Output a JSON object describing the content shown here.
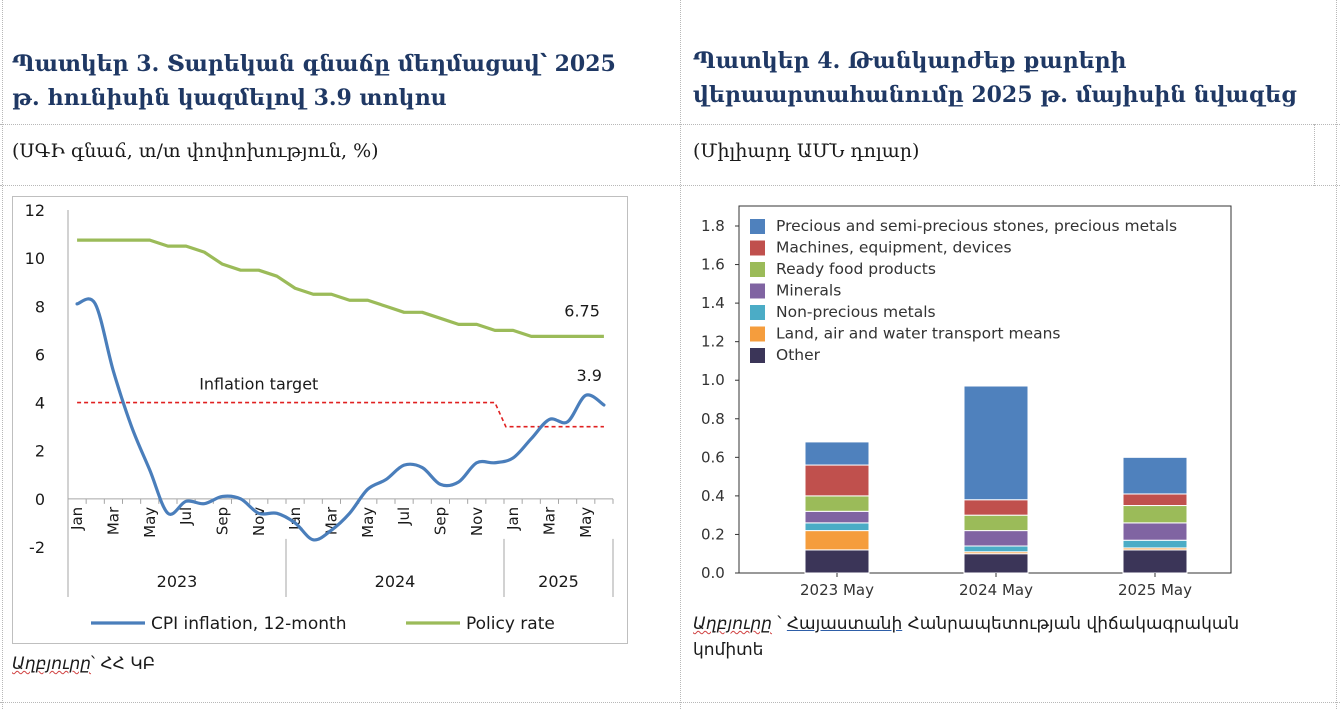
{
  "left_panel": {
    "title_line1": "Պատկեր 3. Տարեկան գնաճը մեղմացավ՝ 2025",
    "title_line2": "թ. հունիսին կազմելով 3.9 տոկոս",
    "subtitle": "(ՍԳԻ գնաճ, տ/տ փոփոխություն, %)",
    "source_label": "Աղբյուրը",
    "source_text": "՝ ՀՀ ԿԲ"
  },
  "right_panel": {
    "title_line1": "Պատկեր 4. Թանկարժեք քարերի",
    "title_line2": "վերաարտահանումը 2025 թ. մայիսին նվազեց",
    "subtitle": "(Միլիարդ ԱՄՆ դոլար)",
    "source_label": "Աղբյուրը",
    "source_sep": " ՝ ",
    "source_link": "Հայաստանի",
    "source_text_rest": " Հանրապետության վիճակագրական",
    "source_text_line2": "կոմիտե"
  },
  "chart_data": [
    {
      "type": "line",
      "ylim": [
        -2,
        12
      ],
      "yticks": [
        "12",
        "10",
        "8",
        "6",
        "4",
        "2",
        "0",
        "-2"
      ],
      "ytick_values": [
        12,
        10,
        8,
        6,
        4,
        2,
        0,
        -2
      ],
      "month_labels": [
        "Jan",
        "Mar",
        "May",
        "Jul",
        "Sep",
        "Nov",
        "Jan",
        "Mar",
        "May",
        "Jul",
        "Sep",
        "Nov",
        "Jan",
        "Mar",
        "May"
      ],
      "month_label_index": [
        0,
        2,
        4,
        6,
        8,
        10,
        12,
        14,
        16,
        18,
        20,
        22,
        24,
        26,
        28
      ],
      "years": [
        {
          "label": "2023",
          "start": 0,
          "end": 12
        },
        {
          "label": "2024",
          "start": 12,
          "end": 24
        },
        {
          "label": "2025",
          "start": 24,
          "end": 30
        }
      ],
      "x_count": 30,
      "series": [
        {
          "name": "CPI inflation, 12-month",
          "color": "#4a7ebb",
          "values": [
            8.1,
            8.1,
            5.3,
            3.0,
            1.2,
            -0.6,
            -0.1,
            -0.2,
            0.1,
            0.0,
            -0.6,
            -0.6,
            -1.0,
            -1.7,
            -1.3,
            -0.6,
            0.4,
            0.8,
            1.4,
            1.3,
            0.6,
            0.7,
            1.5,
            1.5,
            1.7,
            2.5,
            3.3,
            3.2,
            4.3,
            3.9
          ]
        },
        {
          "name": "Policy rate",
          "color": "#9bbb59",
          "values": [
            10.75,
            10.75,
            10.75,
            10.75,
            10.75,
            10.5,
            10.5,
            10.25,
            9.75,
            9.5,
            9.5,
            9.25,
            8.75,
            8.5,
            8.5,
            8.25,
            8.25,
            8.0,
            7.75,
            7.75,
            7.5,
            7.25,
            7.25,
            7.0,
            7.0,
            6.75,
            6.75,
            6.75,
            6.75,
            6.75
          ]
        },
        {
          "name": "Inflation target",
          "color": "#e02020",
          "dashed": true,
          "values": [
            4,
            4,
            4,
            4,
            4,
            4,
            4,
            4,
            4,
            4,
            4,
            4,
            4,
            4,
            4,
            4,
            4,
            4,
            4,
            4,
            4,
            4,
            4,
            4,
            3,
            3,
            3,
            3,
            3,
            3
          ]
        }
      ],
      "annotations": [
        {
          "text": "6.75",
          "series": 1,
          "index": 29
        },
        {
          "text": "3.9",
          "series": 0,
          "index": 29
        },
        {
          "text": "Inflation target"
        }
      ],
      "legend": [
        {
          "label": "CPI inflation, 12-month",
          "color": "#4a7ebb"
        },
        {
          "label": "Policy rate",
          "color": "#9bbb59"
        }
      ],
      "legend_position": "bottom"
    },
    {
      "type": "bar",
      "stacked": true,
      "categories": [
        "2023 May",
        "2024 May",
        "2025 May"
      ],
      "ylim": [
        0,
        1.8
      ],
      "yticks": [
        "0.0",
        "0.2",
        "0.4",
        "0.6",
        "0.8",
        "1.0",
        "1.2",
        "1.4",
        "1.6",
        "1.8"
      ],
      "ytick_values": [
        0,
        0.2,
        0.4,
        0.6,
        0.8,
        1.0,
        1.2,
        1.4,
        1.6,
        1.8
      ],
      "series": [
        {
          "name": "Other",
          "color": "#3b3558",
          "values": [
            0.12,
            0.1,
            0.12
          ]
        },
        {
          "name": "Land, air and water transport means",
          "color": "#f59d3d",
          "values": [
            0.1,
            0.01,
            0.01
          ]
        },
        {
          "name": "Non-precious metals",
          "color": "#4bacc6",
          "values": [
            0.04,
            0.03,
            0.04
          ]
        },
        {
          "name": "Minerals",
          "color": "#8064a2",
          "values": [
            0.06,
            0.08,
            0.09
          ]
        },
        {
          "name": "Ready food products",
          "color": "#9bbb59",
          "values": [
            0.08,
            0.08,
            0.09
          ]
        },
        {
          "name": "Machines, equipment, devices",
          "color": "#c0504d",
          "values": [
            0.16,
            0.08,
            0.06
          ]
        },
        {
          "name": "Precious and semi-precious stones, precious metals",
          "color": "#4f81bd",
          "values": [
            0.12,
            0.59,
            0.19
          ]
        }
      ],
      "legend_order": [
        "Precious and semi-precious stones, precious metals",
        "Machines, equipment, devices",
        "Ready food products",
        "Minerals",
        "Non-precious metals",
        "Land, air and water transport means",
        "Other"
      ],
      "legend_position": "top-left"
    }
  ]
}
